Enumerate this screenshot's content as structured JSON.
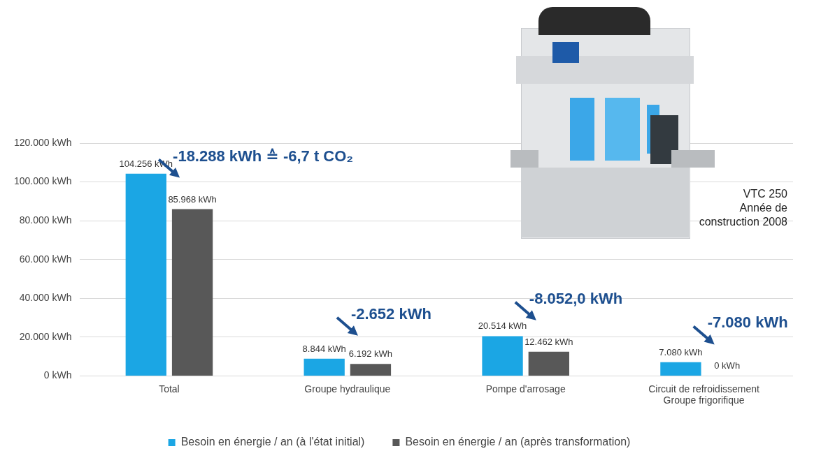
{
  "chart_data": {
    "type": "bar",
    "categories": [
      "Total",
      "Groupe hydraulique",
      "Pompe d'arrosage",
      [
        "Circuit de refroidissement",
        "Groupe frigorifique"
      ]
    ],
    "series": [
      {
        "name": "Besoin en énergie / an (à l'état initial)",
        "color": "#1ba6e4",
        "values": [
          104256,
          8844,
          20514,
          7080
        ],
        "value_labels": [
          "104.256 kWh",
          "8.844 kWh",
          "20.514 kWh",
          "7.080 kWh"
        ]
      },
      {
        "name": "Besoin en énergie / an (après transformation)",
        "color": "#585858",
        "values": [
          85968,
          6192,
          12462,
          0
        ],
        "value_labels": [
          "85.968 kWh",
          "6.192 kWh",
          "12.462 kWh",
          "0 kWh"
        ]
      }
    ],
    "ylim": [
      0,
      120000
    ],
    "yticks": [
      {
        "value": 0,
        "label": "0 kWh"
      },
      {
        "value": 20000,
        "label": "20.000 kWh"
      },
      {
        "value": 40000,
        "label": "40.000 kWh"
      },
      {
        "value": 60000,
        "label": "60.000 kWh"
      },
      {
        "value": 80000,
        "label": "80.000 kWh"
      },
      {
        "value": 100000,
        "label": "100.000 kWh"
      },
      {
        "value": 120000,
        "label": "120.000 kWh"
      }
    ],
    "grid": true,
    "legend": "bottom",
    "data_labels": true,
    "annotations": [
      "-18.288 kWh ≙ -6,7 t CO₂",
      "-2.652 kWh",
      "-8.052,0 kWh",
      "-7.080 kWh"
    ],
    "image_caption": [
      "VTC 250",
      "Année de",
      "construction 2008"
    ]
  }
}
